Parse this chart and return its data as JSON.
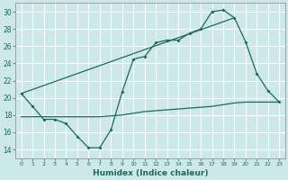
{
  "xlabel": "Humidex (Indice chaleur)",
  "bg_color": "#cce8e8",
  "grid_color": "#ffffff",
  "line_color": "#1a6b5a",
  "xlim": [
    -0.5,
    23.5
  ],
  "ylim": [
    13,
    31
  ],
  "xticks": [
    0,
    1,
    2,
    3,
    4,
    5,
    6,
    7,
    8,
    9,
    10,
    11,
    12,
    13,
    14,
    15,
    16,
    17,
    18,
    19,
    20,
    21,
    22,
    23
  ],
  "yticks": [
    14,
    16,
    18,
    20,
    22,
    24,
    26,
    28,
    30
  ],
  "line1_x": [
    0,
    1,
    2,
    3,
    4,
    5,
    6,
    7,
    8,
    9,
    10,
    11,
    12,
    13,
    14,
    15,
    16,
    17,
    18,
    19,
    20,
    21,
    22,
    23
  ],
  "line1_y": [
    20.5,
    19.0,
    17.5,
    17.5,
    17.0,
    15.5,
    14.2,
    14.2,
    16.3,
    20.7,
    24.5,
    24.8,
    26.4,
    26.7,
    26.7,
    27.5,
    28.0,
    30.0,
    30.2,
    29.3,
    26.5,
    22.8,
    20.8,
    19.5
  ],
  "line2_x": [
    0,
    1,
    2,
    3,
    4,
    5,
    6,
    7,
    8,
    9,
    10,
    11,
    12,
    13,
    14,
    15,
    16,
    17,
    18,
    19,
    20,
    21,
    22,
    23
  ],
  "line2_y": [
    17.8,
    17.8,
    17.8,
    17.8,
    17.8,
    17.8,
    17.8,
    17.8,
    17.9,
    18.0,
    18.2,
    18.4,
    18.5,
    18.6,
    18.7,
    18.8,
    18.9,
    19.0,
    19.2,
    19.4,
    19.5,
    19.5,
    19.5,
    19.5
  ],
  "line3_x": [
    0,
    19
  ],
  "line3_y": [
    20.5,
    29.3
  ]
}
